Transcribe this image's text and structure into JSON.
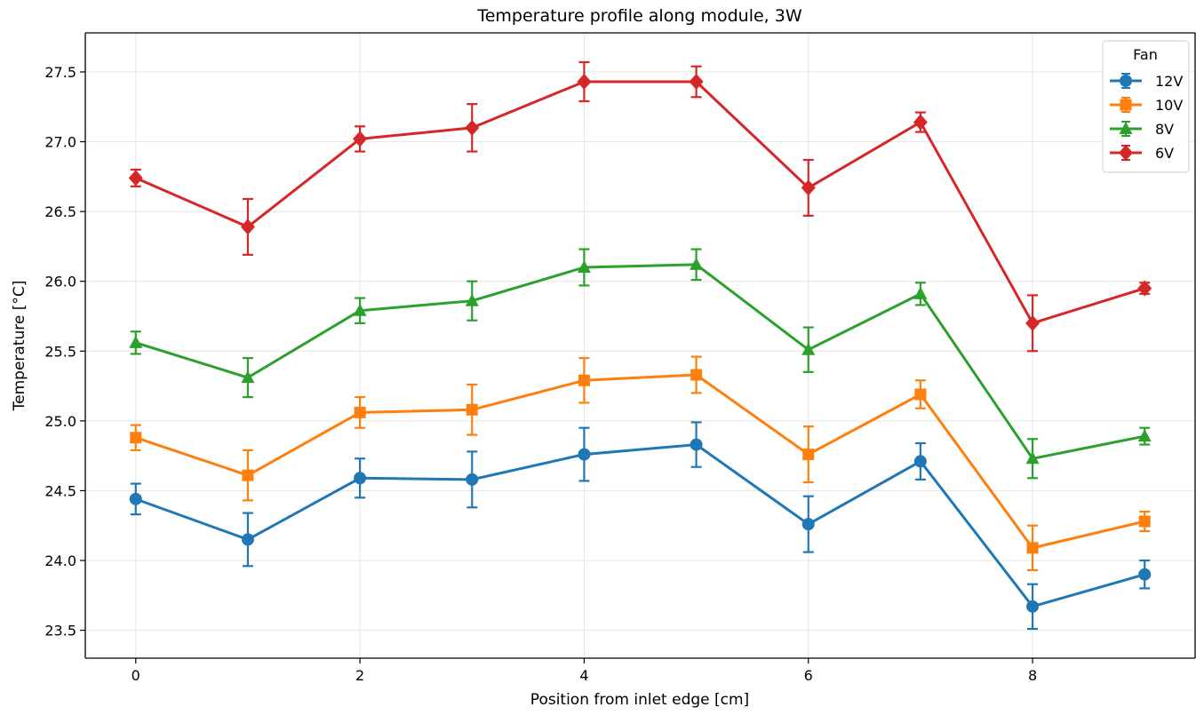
{
  "chart_data": {
    "type": "line",
    "title": "Temperature profile along module, 3W",
    "xlabel": "Position from inlet edge [cm]",
    "ylabel": "Temperature [°C]",
    "xlim": [
      -0.45,
      9.45
    ],
    "ylim": [
      23.3,
      27.78
    ],
    "x_ticks": [
      0,
      2,
      4,
      6,
      8
    ],
    "y_ticks": [
      23.5,
      24.0,
      24.5,
      25.0,
      25.5,
      26.0,
      26.5,
      27.0,
      27.5
    ],
    "grid": true,
    "legend": {
      "title": "Fan",
      "position": "top-right"
    },
    "x": [
      0,
      1,
      2,
      3,
      4,
      5,
      6,
      7,
      8,
      9
    ],
    "series": [
      {
        "name": "12V",
        "color": "#1f77b4",
        "marker": "circle",
        "values": [
          24.44,
          24.15,
          24.59,
          24.58,
          24.76,
          24.83,
          24.26,
          24.71,
          23.67,
          23.9
        ],
        "errors": [
          0.11,
          0.19,
          0.14,
          0.2,
          0.19,
          0.16,
          0.2,
          0.13,
          0.16,
          0.1
        ]
      },
      {
        "name": "10V",
        "color": "#ff7f0e",
        "marker": "square",
        "values": [
          24.88,
          24.61,
          25.06,
          25.08,
          25.29,
          25.33,
          24.76,
          25.19,
          24.09,
          24.28
        ],
        "errors": [
          0.09,
          0.18,
          0.11,
          0.18,
          0.16,
          0.13,
          0.2,
          0.1,
          0.16,
          0.07
        ]
      },
      {
        "name": "8V",
        "color": "#2ca02c",
        "marker": "triangle",
        "values": [
          25.56,
          25.31,
          25.79,
          25.86,
          26.1,
          26.12,
          25.51,
          25.91,
          24.73,
          24.89
        ],
        "errors": [
          0.08,
          0.14,
          0.09,
          0.14,
          0.13,
          0.11,
          0.16,
          0.08,
          0.14,
          0.06
        ]
      },
      {
        "name": "6V",
        "color": "#d62728",
        "marker": "diamond",
        "values": [
          26.74,
          26.39,
          27.02,
          27.1,
          27.43,
          27.43,
          26.67,
          27.14,
          25.7,
          25.95
        ],
        "errors": [
          0.06,
          0.2,
          0.09,
          0.17,
          0.14,
          0.11,
          0.2,
          0.07,
          0.2,
          0.04
        ]
      }
    ]
  }
}
